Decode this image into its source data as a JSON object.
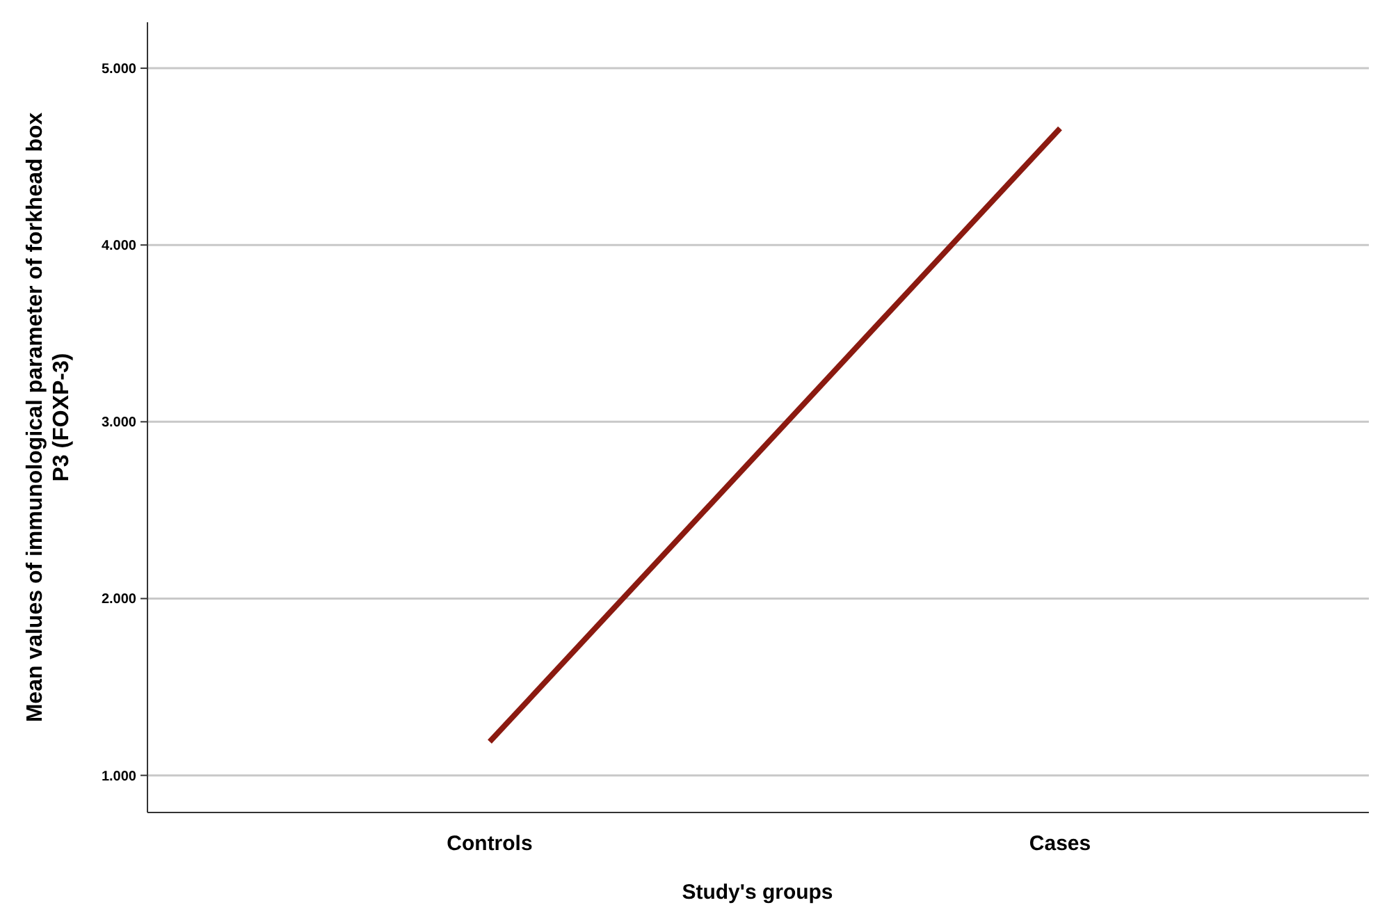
{
  "chart_data": {
    "type": "line",
    "xlabel": "Study's groups",
    "ylabel": "Mean values of immunological parameter of forkhead box P3 (FOXP-3)",
    "categories": [
      "Controls",
      "Cases"
    ],
    "series": [
      {
        "color": "#8b1a10",
        "values": [
          1.19,
          4.66
        ]
      }
    ],
    "ylim": [
      0.79,
      5.26
    ],
    "yticks": [
      {
        "value": 1,
        "label": "1.000"
      },
      {
        "value": 2,
        "label": "2.000"
      },
      {
        "value": 3,
        "label": "3.000"
      },
      {
        "value": 4,
        "label": "4.000"
      },
      {
        "value": 5,
        "label": "5.000"
      }
    ],
    "grid": "y",
    "marker": "none",
    "line_style": "solid"
  }
}
